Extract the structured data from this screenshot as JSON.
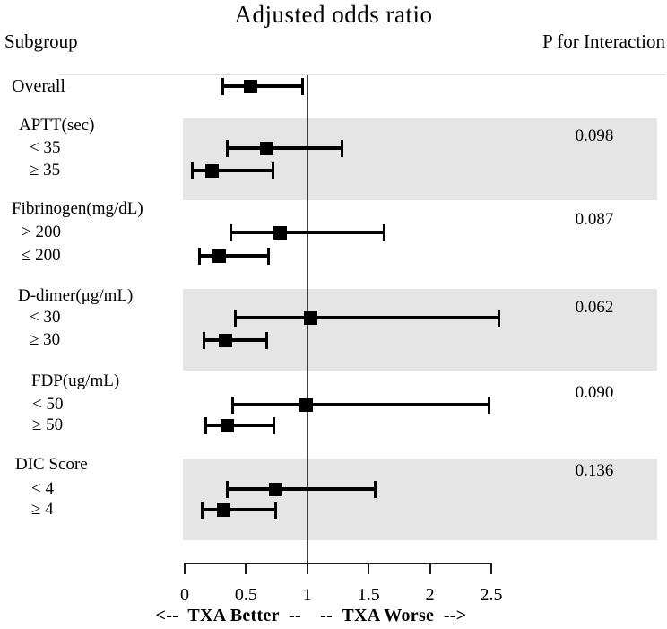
{
  "title": "Adjusted odds ratio",
  "header": {
    "left": "Subgroup",
    "right": "P for Interaction"
  },
  "axis_caption": "<--  TXA Better  --    --  TXA Worse  -->",
  "colors": {
    "band": "#e5e5e5",
    "marker": "#000000",
    "reference_line": "#3f3f3f",
    "top_rule": "#dedede"
  },
  "chart_data": {
    "type": "forest",
    "title": "Adjusted odds ratio",
    "x_axis": {
      "min": 0,
      "max": 2.5,
      "ticks": [
        0,
        0.5,
        1,
        1.5,
        2,
        2.5
      ],
      "reference_line": 1
    },
    "overall": {
      "label": "Overall",
      "or": 0.54,
      "ci_low": 0.31,
      "ci_high": 0.96
    },
    "groups": [
      {
        "label": "APTT(sec)",
        "p_interaction": "0.098",
        "shaded": true,
        "items": [
          {
            "label": "< 35",
            "or": 0.67,
            "ci_low": 0.35,
            "ci_high": 1.28
          },
          {
            "label": "≥ 35",
            "or": 0.22,
            "ci_low": 0.06,
            "ci_high": 0.72
          }
        ]
      },
      {
        "label": "Fibrinogen(mg/dL)",
        "p_interaction": "0.087",
        "shaded": false,
        "items": [
          {
            "label": "> 200",
            "or": 0.78,
            "ci_low": 0.38,
            "ci_high": 1.63
          },
          {
            "label": "≤ 200",
            "or": 0.28,
            "ci_low": 0.12,
            "ci_high": 0.68
          }
        ]
      },
      {
        "label": "D-dimer(μg/mL)",
        "p_interaction": "0.062",
        "shaded": true,
        "items": [
          {
            "label": "< 30",
            "or": 1.03,
            "ci_low": 0.41,
            "ci_high": 2.56
          },
          {
            "label": "≥ 30",
            "or": 0.33,
            "ci_low": 0.16,
            "ci_high": 0.67
          }
        ]
      },
      {
        "label": "FDP(ug/mL)",
        "p_interaction": "0.090",
        "shaded": false,
        "items": [
          {
            "label": "< 50",
            "or": 0.99,
            "ci_low": 0.39,
            "ci_high": 2.48
          },
          {
            "label": "≥ 50",
            "or": 0.35,
            "ci_low": 0.17,
            "ci_high": 0.73
          }
        ]
      },
      {
        "label": "DIC Score",
        "p_interaction": "0.136",
        "shaded": true,
        "items": [
          {
            "label": "< 4",
            "or": 0.74,
            "ci_low": 0.35,
            "ci_high": 1.55
          },
          {
            "label": "≥ 4",
            "or": 0.32,
            "ci_low": 0.14,
            "ci_high": 0.74
          }
        ]
      }
    ],
    "better_label": "TXA Better",
    "worse_label": "TXA Worse"
  }
}
